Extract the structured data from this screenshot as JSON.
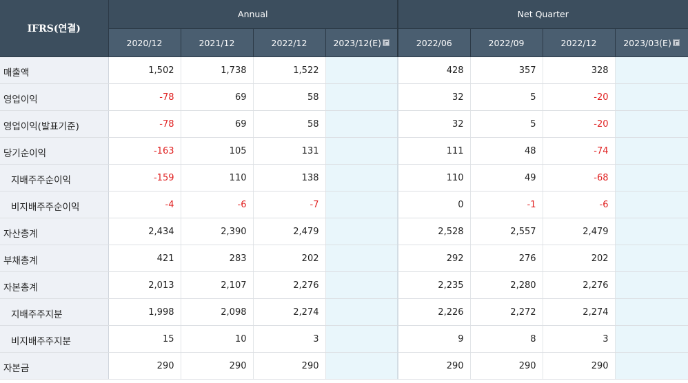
{
  "header": {
    "corner": "IFRS(연결)",
    "annual": "Annual",
    "quarter": "Net Quarter",
    "annual_periods": [
      "2020/12",
      "2021/12",
      "2022/12",
      "2023/12(E)"
    ],
    "quarter_periods": [
      "2022/06",
      "2022/09",
      "2022/12",
      "2023/03(E)"
    ],
    "estimate_icon": "estimate-info-icon"
  },
  "rows": [
    {
      "label": "매출액",
      "annual": [
        "1,502",
        "1,738",
        "1,522",
        ""
      ],
      "quarter": [
        "428",
        "357",
        "328",
        ""
      ]
    },
    {
      "label": "영업이익",
      "annual": [
        "-78",
        "69",
        "58",
        ""
      ],
      "quarter": [
        "32",
        "5",
        "-20",
        ""
      ]
    },
    {
      "label": "영업이익(발표기준)",
      "annual": [
        "-78",
        "69",
        "58",
        ""
      ],
      "quarter": [
        "32",
        "5",
        "-20",
        ""
      ]
    },
    {
      "label": "당기순이익",
      "annual": [
        "-163",
        "105",
        "131",
        ""
      ],
      "quarter": [
        "111",
        "48",
        "-74",
        ""
      ]
    },
    {
      "label": "지배주주순이익",
      "annual": [
        "-159",
        "110",
        "138",
        ""
      ],
      "quarter": [
        "110",
        "49",
        "-68",
        ""
      ]
    },
    {
      "label": "비지배주주순이익",
      "annual": [
        "-4",
        "-6",
        "-7",
        ""
      ],
      "quarter": [
        "0",
        "-1",
        "-6",
        ""
      ]
    },
    {
      "label": "자산총계",
      "annual": [
        "2,434",
        "2,390",
        "2,479",
        ""
      ],
      "quarter": [
        "2,528",
        "2,557",
        "2,479",
        ""
      ]
    },
    {
      "label": "부채총계",
      "annual": [
        "421",
        "283",
        "202",
        ""
      ],
      "quarter": [
        "292",
        "276",
        "202",
        ""
      ]
    },
    {
      "label": "자본총계",
      "annual": [
        "2,013",
        "2,107",
        "2,276",
        ""
      ],
      "quarter": [
        "2,235",
        "2,280",
        "2,276",
        ""
      ]
    },
    {
      "label": "지배주주지분",
      "annual": [
        "1,998",
        "2,098",
        "2,274",
        ""
      ],
      "quarter": [
        "2,226",
        "2,272",
        "2,274",
        ""
      ]
    },
    {
      "label": "비지배주주지분",
      "annual": [
        "15",
        "10",
        "3",
        ""
      ],
      "quarter": [
        "9",
        "8",
        "3",
        ""
      ]
    },
    {
      "label": "자본금",
      "annual": [
        "290",
        "290",
        "290",
        ""
      ],
      "quarter": [
        "290",
        "290",
        "290",
        ""
      ]
    }
  ],
  "colors": {
    "header_bg": "#3c4e5e",
    "label_bg": "#eef1f6",
    "estimate_bg": "#e9f6fb",
    "negative": "#e02020"
  }
}
